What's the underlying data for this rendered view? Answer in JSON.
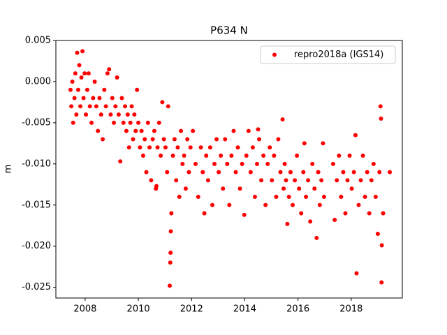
{
  "chart_data": {
    "type": "scatter",
    "title": "P634 N",
    "ylabel": "m",
    "xlim": [
      2006.9,
      2019.92
    ],
    "ylim": [
      -0.0263,
      0.005
    ],
    "xticks": [
      2008,
      2010,
      2012,
      2014,
      2016,
      2018
    ],
    "yticks": [
      0.005,
      {
        "value": 0,
        "label": "0.000"
      },
      -0.005,
      {
        "value": -0.01,
        "label": "-0.010"
      },
      -0.015,
      {
        "value": -0.02,
        "label": "-0.020"
      },
      -0.025
    ],
    "legend": "upper right",
    "grid": false,
    "series": [
      {
        "name": "repro2018a (IGS14)",
        "color": "#ff0000",
        "x": [
          2007.45,
          2007.48,
          2007.52,
          2007.55,
          2007.6,
          2007.63,
          2007.67,
          2007.7,
          2007.74,
          2007.78,
          2007.82,
          2007.86,
          2007.9,
          2007.94,
          2007.98,
          2008.03,
          2008.08,
          2008.13,
          2008.18,
          2008.24,
          2008.3,
          2008.36,
          2008.42,
          2008.48,
          2008.54,
          2008.6,
          2008.66,
          2008.72,
          2008.78,
          2008.84,
          2008.9,
          2008.96,
          2009.02,
          2009.08,
          2009.14,
          2009.2,
          2009.26,
          2009.32,
          2009.38,
          2009.44,
          2009.5,
          2009.55,
          2009.6,
          2009.65,
          2009.7,
          2009.75,
          2009.8,
          2009.85,
          2009.9,
          2009.95,
          2010.0,
          2010.06,
          2010.12,
          2010.18,
          2010.24,
          2010.3,
          2010.36,
          2010.42,
          2010.48,
          2010.54,
          2010.6,
          2010.66,
          2010.72,
          2010.78,
          2010.84,
          2010.9,
          2010.96,
          2010.68,
          2011.02,
          2011.08,
          2011.12,
          2011.18,
          2011.2,
          2011.21,
          2011.22,
          2011.24,
          2011.3,
          2011.36,
          2011.42,
          2011.48,
          2011.54,
          2011.6,
          2011.66,
          2011.72,
          2011.78,
          2011.84,
          2011.9,
          2011.96,
          2012.05,
          2012.15,
          2012.25,
          2012.35,
          2012.42,
          2012.48,
          2012.55,
          2012.62,
          2012.7,
          2012.78,
          2012.86,
          2012.94,
          2013.02,
          2013.1,
          2013.18,
          2013.26,
          2013.34,
          2013.42,
          2013.5,
          2013.58,
          2013.66,
          2013.74,
          2013.82,
          2013.9,
          2013.98,
          2014.06,
          2014.14,
          2014.22,
          2014.3,
          2014.38,
          2014.46,
          2014.54,
          2014.62,
          2014.7,
          2014.78,
          2014.86,
          2014.94,
          2015.02,
          2015.1,
          2015.18,
          2015.26,
          2015.34,
          2015.42,
          2015.46,
          2015.5,
          2014.5,
          2015.55,
          2015.6,
          2015.66,
          2015.72,
          2015.8,
          2015.88,
          2015.96,
          2016.04,
          2016.12,
          2016.2,
          2016.24,
          2016.3,
          2016.38,
          2016.46,
          2016.54,
          2016.62,
          2016.7,
          2016.76,
          2016.82,
          2016.88,
          2016.94,
          2016.98,
          2017.32,
          2017.38,
          2017.46,
          2017.54,
          2017.62,
          2017.7,
          2017.78,
          2017.86,
          2017.94,
          2018.02,
          2018.1,
          2018.16,
          2018.2,
          2018.28,
          2018.36,
          2018.44,
          2018.52,
          2018.6,
          2018.68,
          2018.76,
          2018.84,
          2018.92,
          2019.0,
          2019.06,
          2019.1,
          2019.12,
          2019.14,
          2019.15,
          2019.2,
          2019.45
        ],
        "values": [
          -0.001,
          -0.003,
          0.0,
          -0.005,
          -0.002,
          0.001,
          -0.004,
          0.0035,
          -0.001,
          0.002,
          -0.003,
          0.0005,
          0.0037,
          -0.002,
          0.001,
          -0.004,
          -0.001,
          0.001,
          -0.003,
          -0.005,
          -0.002,
          0.0,
          -0.003,
          -0.006,
          -0.002,
          -0.004,
          -0.007,
          -0.001,
          -0.003,
          0.001,
          0.0015,
          -0.004,
          -0.002,
          -0.005,
          -0.003,
          0.0005,
          -0.004,
          -0.0097,
          -0.002,
          -0.005,
          -0.003,
          -0.006,
          -0.004,
          -0.008,
          -0.005,
          -0.003,
          -0.007,
          -0.004,
          -0.006,
          -0.001,
          -0.005,
          -0.008,
          -0.006,
          -0.009,
          -0.007,
          -0.011,
          -0.005,
          -0.008,
          -0.012,
          -0.007,
          -0.006,
          -0.013,
          -0.008,
          -0.005,
          -0.009,
          -0.0025,
          -0.007,
          -0.0127,
          -0.008,
          -0.011,
          -0.003,
          -0.0248,
          -0.022,
          -0.0208,
          -0.0182,
          -0.016,
          -0.009,
          -0.007,
          -0.012,
          -0.008,
          -0.014,
          -0.006,
          -0.01,
          -0.009,
          -0.013,
          -0.007,
          -0.011,
          -0.008,
          -0.006,
          -0.01,
          -0.014,
          -0.008,
          -0.011,
          -0.016,
          -0.009,
          -0.012,
          -0.008,
          -0.015,
          -0.01,
          -0.007,
          -0.011,
          -0.009,
          -0.013,
          -0.007,
          -0.01,
          -0.015,
          -0.009,
          -0.006,
          -0.011,
          -0.008,
          -0.013,
          -0.01,
          -0.0162,
          -0.009,
          -0.006,
          -0.011,
          -0.008,
          -0.014,
          -0.01,
          -0.007,
          -0.012,
          -0.009,
          -0.015,
          -0.01,
          -0.008,
          -0.012,
          -0.009,
          -0.014,
          -0.007,
          -0.011,
          -0.0046,
          -0.013,
          -0.01,
          -0.0058,
          -0.012,
          -0.0173,
          -0.014,
          -0.011,
          -0.015,
          -0.012,
          -0.009,
          -0.013,
          -0.016,
          -0.011,
          -0.0075,
          -0.014,
          -0.012,
          -0.017,
          -0.01,
          -0.013,
          -0.019,
          -0.011,
          -0.015,
          -0.012,
          -0.0075,
          -0.014,
          -0.01,
          -0.0168,
          -0.012,
          -0.009,
          -0.014,
          -0.011,
          -0.016,
          -0.012,
          -0.009,
          -0.013,
          -0.011,
          -0.0065,
          -0.0233,
          -0.015,
          -0.012,
          -0.009,
          -0.014,
          -0.011,
          -0.016,
          -0.012,
          -0.01,
          -0.014,
          -0.0185,
          -0.011,
          -0.003,
          -0.0045,
          -0.0244,
          -0.0199,
          -0.016,
          -0.011
        ]
      }
    ]
  }
}
